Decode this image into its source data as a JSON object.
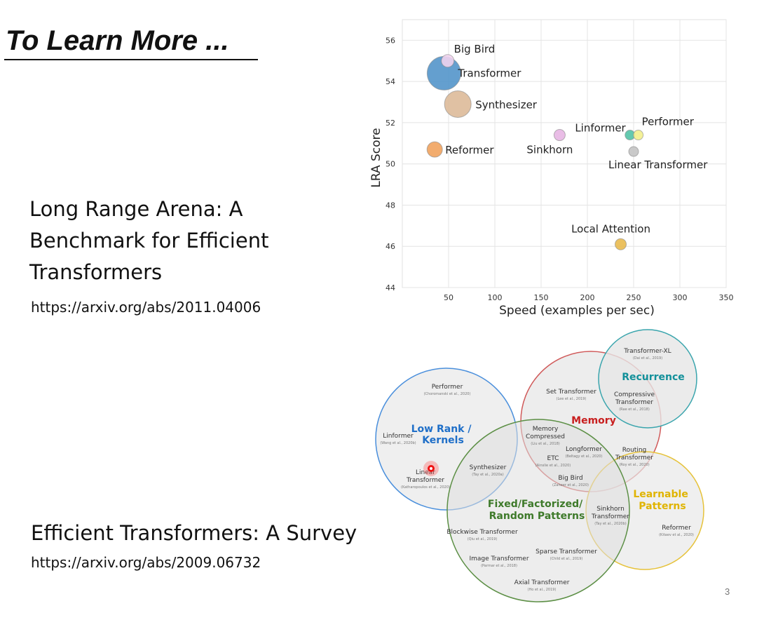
{
  "slide": {
    "title": "To Learn More ...",
    "page_number": "3"
  },
  "paper1": {
    "title_lines": [
      "Long Range Arena: A",
      "Benchmark for Efficient",
      "Transformers"
    ],
    "url": "https://arxiv.org/abs/2011.04006"
  },
  "paper2": {
    "title": "Efficient Transformers: A Survey",
    "url": "https://arxiv.org/abs/2009.06732"
  },
  "chart_data": {
    "type": "scatter",
    "title": "",
    "xlabel": "Speed (examples per sec)",
    "ylabel": "LRA Score",
    "xlim": [
      0,
      350
    ],
    "ylim": [
      44,
      57
    ],
    "xticks": [
      50,
      100,
      150,
      200,
      250,
      300,
      350
    ],
    "yticks": [
      44,
      46,
      48,
      50,
      52,
      54,
      56
    ],
    "grid": true,
    "points": [
      {
        "name": "Big Bird",
        "x": 49,
        "y": 55.0,
        "size": 9,
        "color": "#f3d4ef"
      },
      {
        "name": "Transformer",
        "x": 45,
        "y": 54.4,
        "size": 24,
        "color": "#4e92c8"
      },
      {
        "name": "Synthesizer",
        "x": 60,
        "y": 52.9,
        "size": 19,
        "color": "#dcb896"
      },
      {
        "name": "Reformer",
        "x": 35,
        "y": 50.7,
        "size": 11,
        "color": "#f0a05a"
      },
      {
        "name": "Sinkhorn",
        "x": 170,
        "y": 51.4,
        "size": 8,
        "color": "#e6b4e2"
      },
      {
        "name": "Linformer",
        "x": 246,
        "y": 51.4,
        "size": 7,
        "color": "#4fc2a4"
      },
      {
        "name": "Performer",
        "x": 255,
        "y": 51.4,
        "size": 7,
        "color": "#f2ef8a"
      },
      {
        "name": "Linear Transformer",
        "x": 250,
        "y": 50.6,
        "size": 7,
        "color": "#c2c2c2"
      },
      {
        "name": "Local Attention",
        "x": 236,
        "y": 46.1,
        "size": 8,
        "color": "#e8b84a"
      }
    ]
  },
  "venn": {
    "regions": {
      "low_rank": "Low Rank /\nKernels",
      "memory": "Memory",
      "recurrence": "Recurrence",
      "learnable": "Learnable\nPatterns",
      "fixed": "Fixed/Factorized/\nRandom Patterns"
    },
    "models": [
      {
        "name": "Performer",
        "cite": "(Choromanski et al., 2020)"
      },
      {
        "name": "Linformer",
        "cite": "(Wang et al., 2020b)"
      },
      {
        "name": "Linear Transformer",
        "cite": "(Katharopoulos et al., 2020)"
      },
      {
        "name": "Synthesizer",
        "cite": "(Tay et al., 2020a)"
      },
      {
        "name": "Set Transformer",
        "cite": "(Lee et al., 2019)"
      },
      {
        "name": "Memory Compressed",
        "cite": "(Liu et al., 2018)"
      },
      {
        "name": "Longformer",
        "cite": "(Beltagy et al., 2020)"
      },
      {
        "name": "ETC",
        "cite": "(Ainslie et al., 2020)"
      },
      {
        "name": "Big Bird",
        "cite": "(Zaheer et al., 2020)"
      },
      {
        "name": "Transformer-XL",
        "cite": "(Dai et al., 2019)"
      },
      {
        "name": "Compressive Transformer",
        "cite": "(Rae et al., 2018)"
      },
      {
        "name": "Routing Transformer",
        "cite": "(Roy et al., 2020)"
      },
      {
        "name": "Sinkhorn Transformer",
        "cite": "(Tay et al., 2020b)"
      },
      {
        "name": "Reformer",
        "cite": "(Kitaev et al., 2020)"
      },
      {
        "name": "Blockwise Transformer",
        "cite": "(Qiu et al., 2019)"
      },
      {
        "name": "Sparse Transformer",
        "cite": "(Child et al., 2019)"
      },
      {
        "name": "Image Transformer",
        "cite": "(Parmar et al., 2018)"
      },
      {
        "name": "Axial Transformer",
        "cite": "(Ho et al., 2019)"
      }
    ]
  },
  "colors": {
    "low_rank": "#1f6fc8",
    "memory": "#c81e1e",
    "recurrence": "#12909a",
    "learnable": "#e0b400",
    "fixed": "#3e7a2a"
  }
}
